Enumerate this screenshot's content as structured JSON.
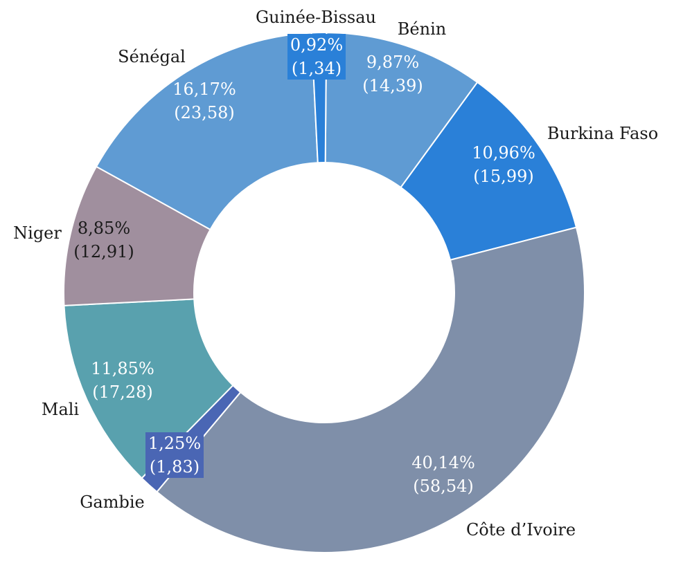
{
  "chart_data": {
    "type": "pie",
    "variant": "donut",
    "title": "",
    "legend": "none",
    "slices": [
      {
        "name": "Bénin",
        "percent_label": "9,87%",
        "value_label": "(14,39)",
        "percent": 9.87,
        "value": 14.39,
        "color": "#5f9bd3",
        "text_color": "#ffffff"
      },
      {
        "name": "Burkina Faso",
        "percent_label": "10,96%",
        "value_label": "(15,99)",
        "percent": 10.96,
        "value": 15.99,
        "color": "#2a80d8",
        "text_color": "#ffffff"
      },
      {
        "name": "Côte d’Ivoire",
        "percent_label": "40,14%",
        "value_label": "(58,54)",
        "percent": 40.14,
        "value": 58.54,
        "color": "#7f8fa9",
        "text_color": "#ffffff"
      },
      {
        "name": "Gambie",
        "percent_label": "1,25%",
        "value_label": "(1,83)",
        "percent": 1.25,
        "value": 1.83,
        "color": "#4a66b4",
        "text_color": "#ffffff"
      },
      {
        "name": "Mali",
        "percent_label": "11,85%",
        "value_label": "(17,28)",
        "percent": 11.85,
        "value": 17.28,
        "color": "#59a1ae",
        "text_color": "#ffffff"
      },
      {
        "name": "Niger",
        "percent_label": "8,85%",
        "value_label": "(12,91)",
        "percent": 8.85,
        "value": 12.91,
        "color": "#a08f9e",
        "text_color": "#1a1a1a"
      },
      {
        "name": "Sénégal",
        "percent_label": "16,17%",
        "value_label": "(23,58)",
        "percent": 16.17,
        "value": 23.58,
        "color": "#5f9bd3",
        "text_color": "#ffffff"
      },
      {
        "name": "Guinée-Bissau",
        "percent_label": "0,92%",
        "value_label": "(1,34)",
        "percent": 0.92,
        "value": 1.34,
        "color": "#2a80d8",
        "text_color": "#ffffff"
      }
    ]
  }
}
